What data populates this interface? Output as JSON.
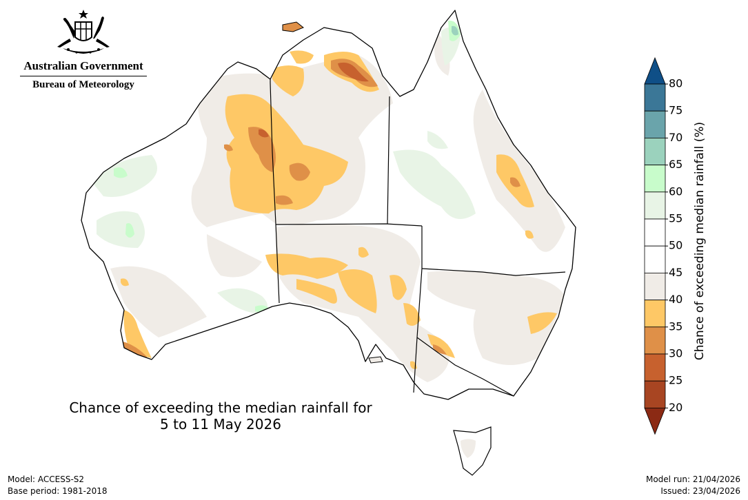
{
  "header": {
    "org_line1": "Australian Government",
    "org_line2": "Bureau of Meteorology",
    "crest_icon": "coat-of-arms-icon"
  },
  "map_title": {
    "line1": "Chance of exceeding the median rainfall for",
    "line2": "5 to 11 May 2026"
  },
  "footer": {
    "model": "Model: ACCESS-S2",
    "base_period": "Base period: 1981-2018",
    "model_run": "Model run: 21/04/2026",
    "issued": "Issued: 23/04/2026"
  },
  "legend": {
    "title": "Chance of exceeding median rainfall (%)",
    "ticks": [
      "80",
      "75",
      "70",
      "65",
      "60",
      "55",
      "50",
      "45",
      "40",
      "35",
      "30",
      "25",
      "20"
    ],
    "bins": [
      {
        "range": "above 80",
        "color": "#0f4f87"
      },
      {
        "range": "75-80",
        "color": "#3b7797"
      },
      {
        "range": "70-75",
        "color": "#6aa4ab"
      },
      {
        "range": "65-70",
        "color": "#9bd2bd"
      },
      {
        "range": "60-65",
        "color": "#c8fccb"
      },
      {
        "range": "55-60",
        "color": "#e8f4e6"
      },
      {
        "range": "50-55",
        "color": "#ffffff"
      },
      {
        "range": "45-50",
        "color": "#ffffff"
      },
      {
        "range": "40-45",
        "color": "#f0ece7"
      },
      {
        "range": "35-40",
        "color": "#fec866"
      },
      {
        "range": "30-35",
        "color": "#df9048"
      },
      {
        "range": "25-30",
        "color": "#c7612e"
      },
      {
        "range": "20-25",
        "color": "#a84522"
      },
      {
        "range": "below 20",
        "color": "#8b2a14"
      }
    ]
  },
  "colors": {
    "coast": "#000000",
    "border": "#000000",
    "near_normal_dry": "#f0ece7",
    "dry_35_40": "#fec866",
    "dry_30_35": "#df9048",
    "dry_25_30": "#c7612e",
    "wet_55_60": "#e8f4e6",
    "wet_60_65": "#c8fccb",
    "wet_65_70": "#9bd2bd"
  }
}
